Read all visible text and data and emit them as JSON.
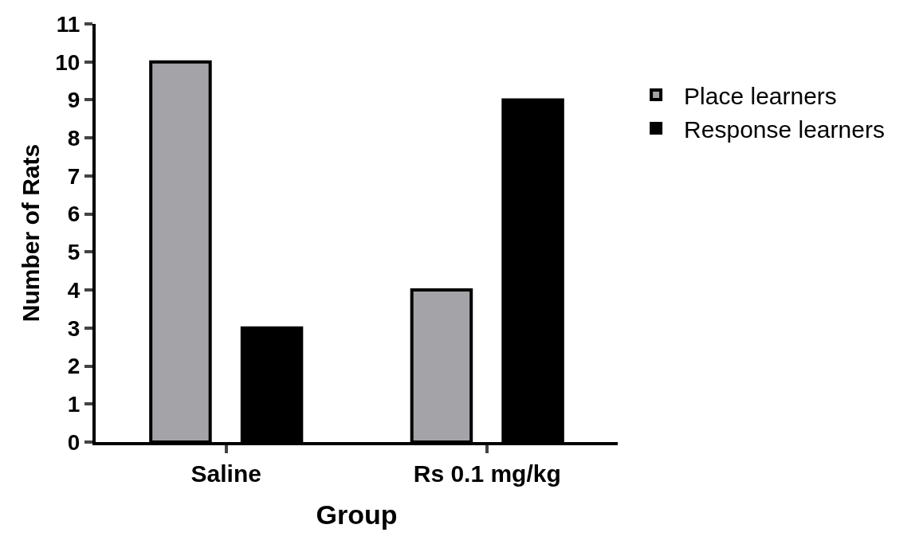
{
  "chart_data": {
    "type": "bar",
    "xlabel": "Group",
    "ylabel": "Number of Rats",
    "categories": [
      "Saline",
      "Rs 0.1 mg/kg"
    ],
    "series": [
      {
        "name": "Place learners",
        "color": "#a3a3a8",
        "values": [
          10,
          4
        ]
      },
      {
        "name": "Response learners",
        "color": "#000000",
        "values": [
          3,
          9
        ]
      }
    ],
    "ylim": [
      0,
      11
    ],
    "yticks": [
      0,
      1,
      2,
      3,
      4,
      5,
      6,
      7,
      8,
      9,
      10,
      11
    ],
    "grid": false,
    "legend": "top right"
  }
}
